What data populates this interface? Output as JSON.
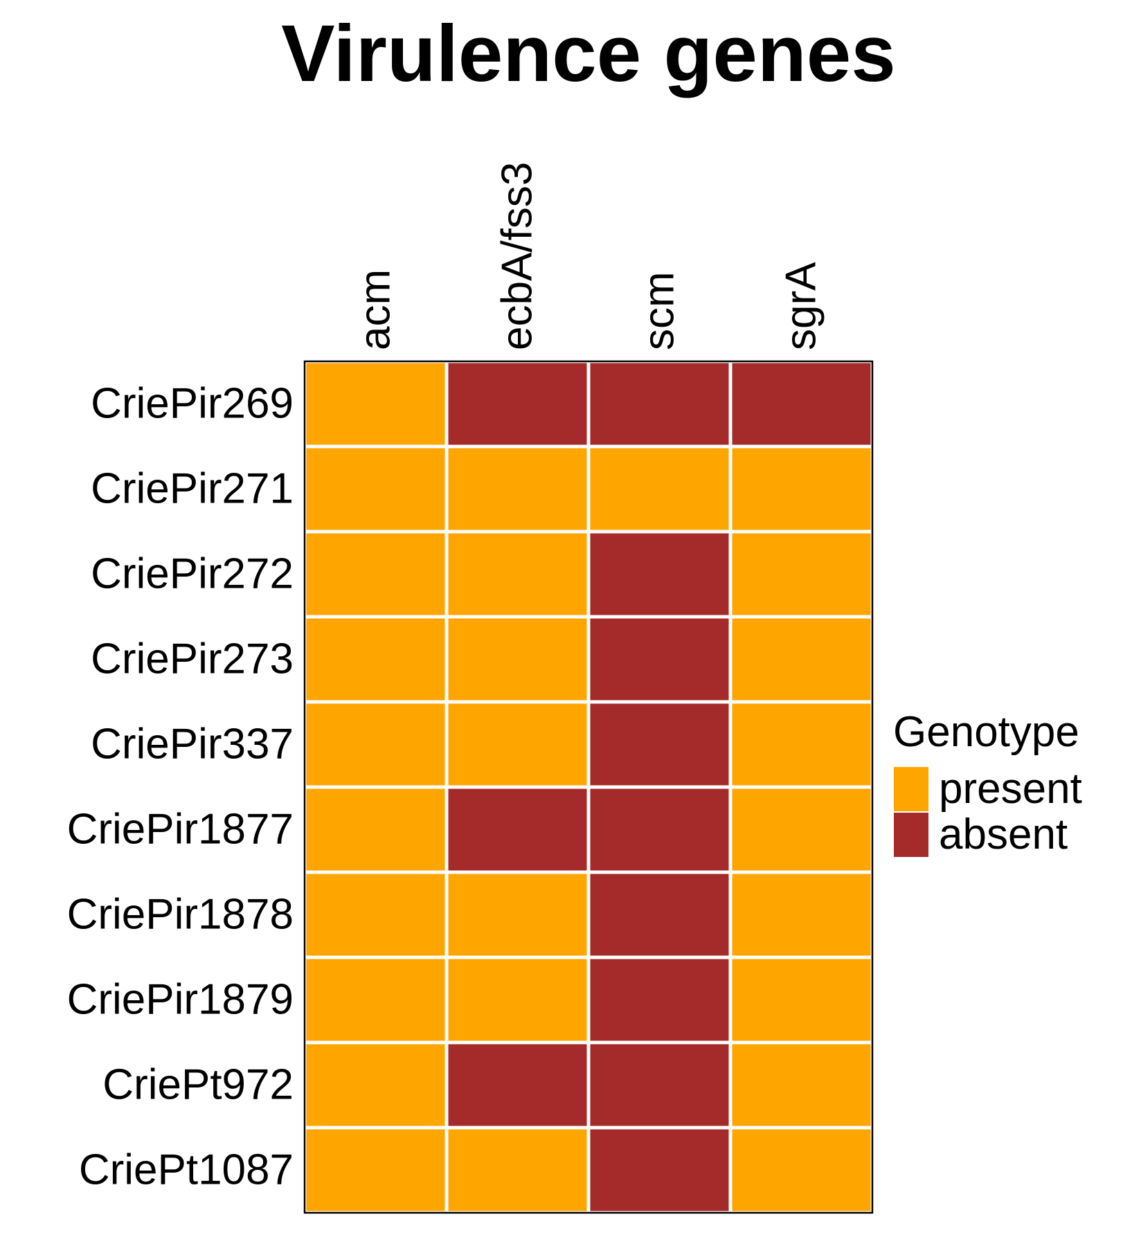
{
  "chart_data": {
    "type": "heatmap",
    "title": "Virulence genes",
    "xlabel": "",
    "ylabel": "",
    "columns": [
      "acm",
      "ecbA/fss3",
      "scm",
      "sgrA"
    ],
    "rows": [
      "CriePir269",
      "CriePir271",
      "CriePir272",
      "CriePir273",
      "CriePir337",
      "CriePir1877",
      "CriePir1878",
      "CriePir1879",
      "CriePt972",
      "CriePt1087"
    ],
    "values": [
      [
        "present",
        "absent",
        "absent",
        "absent"
      ],
      [
        "present",
        "present",
        "present",
        "present"
      ],
      [
        "present",
        "present",
        "absent",
        "present"
      ],
      [
        "present",
        "present",
        "absent",
        "present"
      ],
      [
        "present",
        "present",
        "absent",
        "present"
      ],
      [
        "present",
        "absent",
        "absent",
        "present"
      ],
      [
        "present",
        "present",
        "absent",
        "present"
      ],
      [
        "present",
        "present",
        "absent",
        "present"
      ],
      [
        "present",
        "absent",
        "absent",
        "present"
      ],
      [
        "present",
        "present",
        "absent",
        "present"
      ]
    ],
    "legend": {
      "title": "Genotype",
      "placement": "right",
      "entries": [
        {
          "label": "present",
          "color": "#FFA500"
        },
        {
          "label": "absent",
          "color": "#A52A2A"
        }
      ]
    },
    "colors": {
      "present": "#FFA500",
      "absent": "#A52A2A"
    }
  }
}
